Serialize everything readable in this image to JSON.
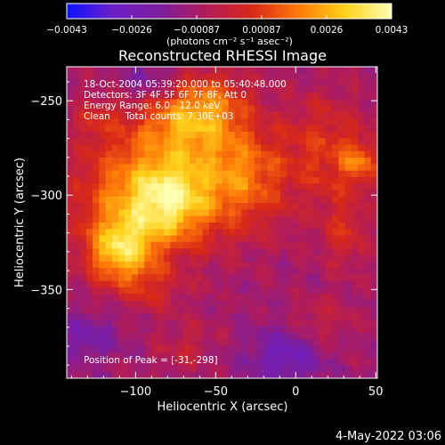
{
  "chart_data": {
    "type": "heatmap",
    "title": "Reconstructed RHESSI Image",
    "xlabel": "Heliocentric X (arcsec)",
    "ylabel": "Heliocentric Y (arcsec)",
    "xlim": [
      -143,
      51
    ],
    "ylim": [
      -397,
      -232
    ],
    "x_ticks": [
      {
        "v": -100,
        "label": "−100"
      },
      {
        "v": -50,
        "label": "−50"
      },
      {
        "v": 0,
        "label": "0"
      },
      {
        "v": 50,
        "label": "50"
      }
    ],
    "y_ticks": [
      {
        "v": -250,
        "label": "−250"
      },
      {
        "v": -300,
        "label": "−300"
      },
      {
        "v": -350,
        "label": "−350"
      }
    ],
    "annotations": [
      "18-Oct-2004 05:39:20.000 to 05:40:48.000",
      "Detectors: 3F 4F 5F 6F 7F 8F, Att 0",
      "Energy Range: 6.0 - 12.0 keV",
      "Clean     Total counts: 7.30E+03"
    ],
    "peak_label": "Position of Peak = [-31,-298]",
    "peak": [
      -31,
      -298
    ],
    "colorbar": {
      "range": [
        -0.0043,
        0.0043
      ],
      "tick_labels": [
        "−0.0043",
        "−0.0026",
        "−0.00087",
        "0.00087",
        "0.0026",
        "0.0043"
      ],
      "units_label": "(photons cm⁻² s⁻¹ asec⁻²)",
      "colormap": [
        "#0a14ff",
        "#6c1fc8",
        "#7d1e9c",
        "#b01c5a",
        "#d82818",
        "#ff7a08",
        "#ffd21a",
        "#ffffb4"
      ]
    },
    "grid": false,
    "blobs": [
      {
        "x": -95,
        "y": -300,
        "sx": 28,
        "sy": 22,
        "a": 0.0032
      },
      {
        "x": -110,
        "y": -330,
        "sx": 14,
        "sy": 12,
        "a": 0.0034
      },
      {
        "x": -78,
        "y": -304,
        "sx": 16,
        "sy": 14,
        "a": 0.0022
      },
      {
        "x": -70,
        "y": -262,
        "sx": 22,
        "sy": 14,
        "a": 0.0022
      },
      {
        "x": -35,
        "y": -290,
        "sx": 22,
        "sy": 20,
        "a": 0.0026
      },
      {
        "x": -55,
        "y": -250,
        "sx": 18,
        "sy": 12,
        "a": 0.0016
      },
      {
        "x": 20,
        "y": -275,
        "sx": 18,
        "sy": 20,
        "a": 0.0016
      },
      {
        "x": 40,
        "y": -283,
        "sx": 8,
        "sy": 8,
        "a": 0.002
      },
      {
        "x": 30,
        "y": -320,
        "sx": 10,
        "sy": 14,
        "a": 0.0013
      },
      {
        "x": -125,
        "y": -260,
        "sx": 10,
        "sy": 10,
        "a": 0.001
      },
      {
        "x": -90,
        "y": -350,
        "sx": 14,
        "sy": 8,
        "a": 0.001
      },
      {
        "x": -70,
        "y": -380,
        "sx": 12,
        "sy": 10,
        "a": 0.0008
      },
      {
        "x": 15,
        "y": -370,
        "sx": 14,
        "sy": 10,
        "a": 0.0009
      },
      {
        "x": -5,
        "y": -385,
        "sx": 18,
        "sy": 10,
        "a": -0.0018
      },
      {
        "x": -130,
        "y": -375,
        "sx": 14,
        "sy": 10,
        "a": -0.0012
      },
      {
        "x": -90,
        "y": -240,
        "sx": 14,
        "sy": 8,
        "a": -0.0012
      }
    ]
  },
  "footer": {
    "date": "4-May-2022 03:06"
  }
}
